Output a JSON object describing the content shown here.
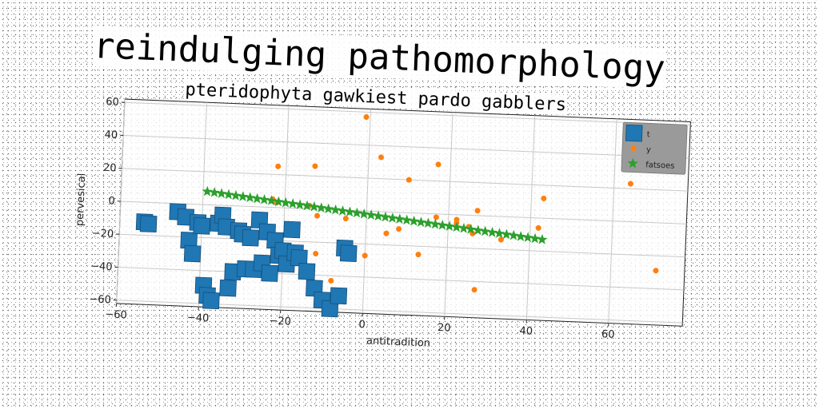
{
  "chart_data": {
    "type": "scatter",
    "title": "reindulging pathomorphology",
    "subtitle": "pteridophyta gawkiest pardo gabblers",
    "xlabel": "antitradition",
    "ylabel": "pervesical",
    "xlim": [
      -60,
      78
    ],
    "ylim": [
      -62,
      62
    ],
    "xticks": [
      -60,
      -40,
      -20,
      0,
      20,
      40,
      60
    ],
    "yticks": [
      -60,
      -40,
      -20,
      0,
      20,
      40,
      60
    ],
    "grid": true,
    "legend_position": "top-right",
    "series": [
      {
        "name": "t",
        "marker": "square",
        "color": "#1f77b4",
        "points": [
          [
            -54,
            -12
          ],
          [
            -53,
            -13
          ],
          [
            -46,
            -5
          ],
          [
            -44,
            -8
          ],
          [
            -43,
            -22
          ],
          [
            -42,
            -30
          ],
          [
            -41,
            -11
          ],
          [
            -40,
            -13
          ],
          [
            -39,
            -49
          ],
          [
            -38,
            -55
          ],
          [
            -37,
            -58
          ],
          [
            -36,
            -11
          ],
          [
            -35,
            -6
          ],
          [
            -34,
            -13
          ],
          [
            -33,
            -50
          ],
          [
            -32,
            -40
          ],
          [
            -31,
            -15
          ],
          [
            -30,
            -17
          ],
          [
            -29,
            -38
          ],
          [
            -28,
            -19
          ],
          [
            -27,
            -38
          ],
          [
            -26,
            -8
          ],
          [
            -25,
            -34
          ],
          [
            -24,
            -15
          ],
          [
            -23,
            -40
          ],
          [
            -22,
            -20
          ],
          [
            -21,
            -29
          ],
          [
            -20,
            -26
          ],
          [
            -19,
            -34
          ],
          [
            -18,
            -13
          ],
          [
            -17,
            -27
          ],
          [
            -16,
            -30
          ],
          [
            -14,
            -38
          ],
          [
            -12,
            -48
          ],
          [
            -10,
            -55
          ],
          [
            -8,
            -60
          ],
          [
            -6,
            -52
          ],
          [
            -5,
            -23
          ],
          [
            -4,
            -26
          ]
        ]
      },
      {
        "name": "y",
        "marker": "circle",
        "color": "#ff7f0e",
        "points": [
          [
            -23,
            5
          ],
          [
            -22,
            3
          ],
          [
            -22,
            25
          ],
          [
            -14,
            2
          ],
          [
            -13,
            26
          ],
          [
            -12,
            -4
          ],
          [
            -12,
            -27
          ],
          [
            -8,
            -43
          ],
          [
            -5,
            -5
          ],
          [
            -1,
            57
          ],
          [
            0,
            -27
          ],
          [
            3,
            33
          ],
          [
            5,
            -13
          ],
          [
            8,
            -10
          ],
          [
            10,
            20
          ],
          [
            13,
            -25
          ],
          [
            17,
            30
          ],
          [
            17,
            -2
          ],
          [
            22,
            -5
          ],
          [
            22,
            -3
          ],
          [
            25,
            -7
          ],
          [
            26,
            -11
          ],
          [
            27,
            3
          ],
          [
            27,
            -45
          ],
          [
            33,
            -14
          ],
          [
            42,
            -6
          ],
          [
            43,
            12
          ],
          [
            64,
            23
          ],
          [
            71,
            -29
          ]
        ]
      },
      {
        "name": "fatsoes",
        "marker": "star",
        "color": "#2ca02c",
        "line": {
          "x_start": -39,
          "y_start": 8,
          "x_end": 43,
          "y_end": -13,
          "count": 48
        }
      }
    ]
  }
}
